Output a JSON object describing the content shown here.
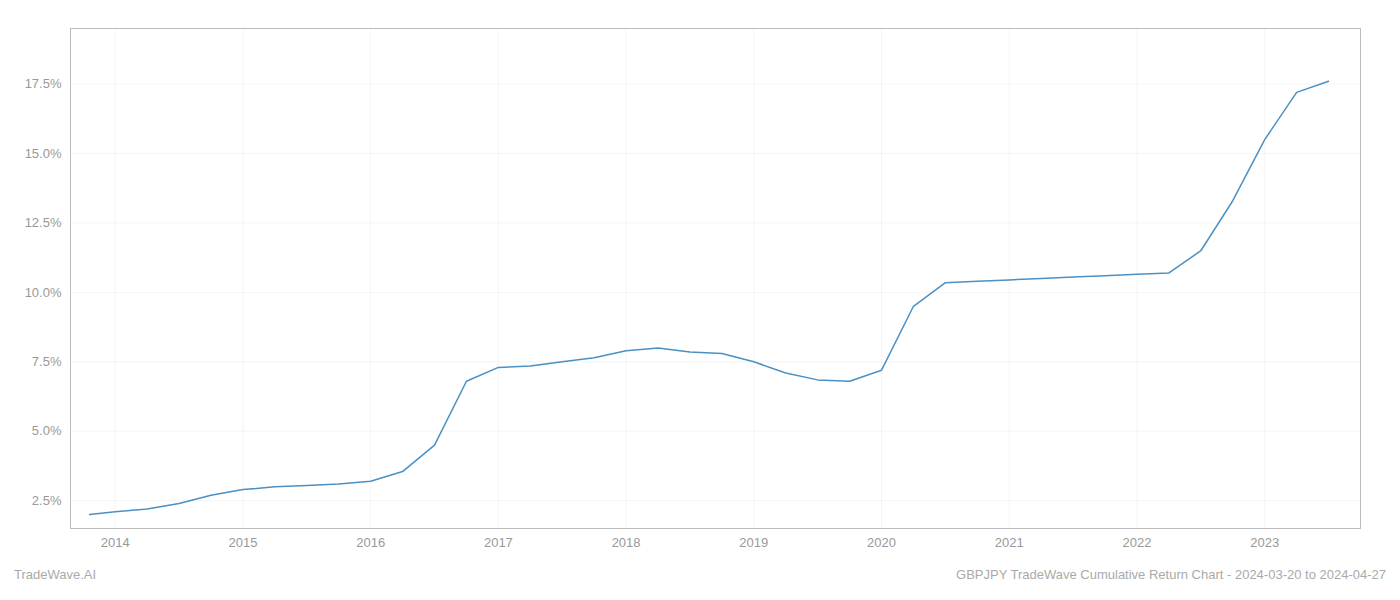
{
  "chart_data": {
    "type": "line",
    "x": [
      2013.8,
      2014.0,
      2014.25,
      2014.5,
      2014.75,
      2015.0,
      2015.25,
      2015.5,
      2015.75,
      2016.0,
      2016.25,
      2016.5,
      2016.75,
      2017.0,
      2017.25,
      2017.5,
      2017.75,
      2018.0,
      2018.25,
      2018.5,
      2018.75,
      2019.0,
      2019.25,
      2019.5,
      2019.75,
      2020.0,
      2020.25,
      2020.5,
      2020.75,
      2021.0,
      2021.25,
      2021.5,
      2021.75,
      2022.0,
      2022.25,
      2022.5,
      2022.75,
      2023.0,
      2023.25,
      2023.5
    ],
    "values": [
      2.0,
      2.1,
      2.2,
      2.4,
      2.7,
      2.9,
      3.0,
      3.05,
      3.1,
      3.2,
      3.55,
      4.5,
      6.8,
      7.3,
      7.35,
      7.5,
      7.65,
      7.9,
      8.0,
      7.85,
      7.8,
      7.5,
      7.1,
      6.85,
      6.8,
      7.2,
      9.5,
      10.35,
      10.4,
      10.45,
      10.5,
      10.55,
      10.6,
      10.65,
      10.7,
      11.5,
      13.3,
      15.5,
      17.2,
      17.6
    ],
    "color": "#4a90c4",
    "xlim": [
      2013.65,
      2023.75
    ],
    "xticks": [
      2014,
      2015,
      2016,
      2017,
      2018,
      2019,
      2020,
      2021,
      2022,
      2023
    ],
    "ylim": [
      1.5,
      19.5
    ],
    "yticks": [
      {
        "value": 2.5,
        "label": "2.5%"
      },
      {
        "value": 5.0,
        "label": "5.0%"
      },
      {
        "value": 7.5,
        "label": "7.5%"
      },
      {
        "value": 10.0,
        "label": "10.0%"
      },
      {
        "value": 12.5,
        "label": "12.5%"
      },
      {
        "value": 15.0,
        "label": "15.0%"
      },
      {
        "value": 17.5,
        "label": "17.5%"
      }
    ],
    "grid": true,
    "annotations": [
      "TradeWave.AI",
      "GBPJPY TradeWave Cumulative Return Chart - 2024-03-20 to 2024-04-27"
    ]
  }
}
